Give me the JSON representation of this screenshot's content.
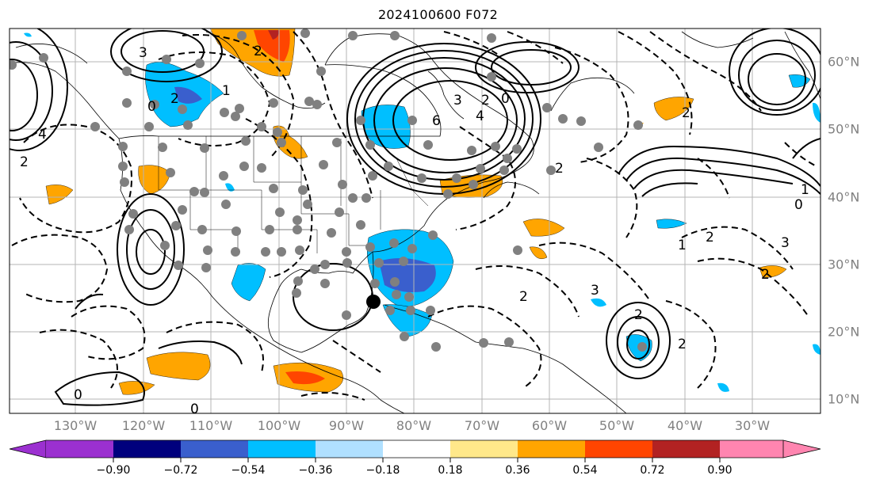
{
  "title": "2024100600 F072",
  "map": {
    "longitude_labels": [
      "130°W",
      "120°W",
      "110°W",
      "100°W",
      "90°W",
      "80°W",
      "70°W",
      "60°W",
      "50°W",
      "40°W",
      "30°W"
    ],
    "latitude_labels": [
      "60°N",
      "50°N",
      "40°N",
      "30°N",
      "20°N",
      "10°N"
    ],
    "contour_labels": [
      "3",
      "2",
      "0",
      "1",
      "2",
      "3",
      "2",
      "6",
      "4",
      "2",
      "0",
      "2",
      "1",
      "0",
      "2",
      "3",
      "2",
      "2",
      "3",
      "1",
      "2",
      "2",
      "0",
      "0",
      "2",
      "4"
    ],
    "marker": "storm-center-dot"
  },
  "colorbar": {
    "tick_labels": [
      "−0.90",
      "−0.72",
      "−0.54",
      "−0.36",
      "−0.18",
      "0.18",
      "0.36",
      "0.54",
      "0.72",
      "0.90"
    ],
    "colors": [
      "#9b30d0",
      "#00007d",
      "#3a5fcd",
      "#00bfff",
      "#b0e0ff",
      "#ffffff",
      "#ffe88a",
      "#ffa500",
      "#ff4500",
      "#b22222",
      "#ff85b0"
    ]
  }
}
